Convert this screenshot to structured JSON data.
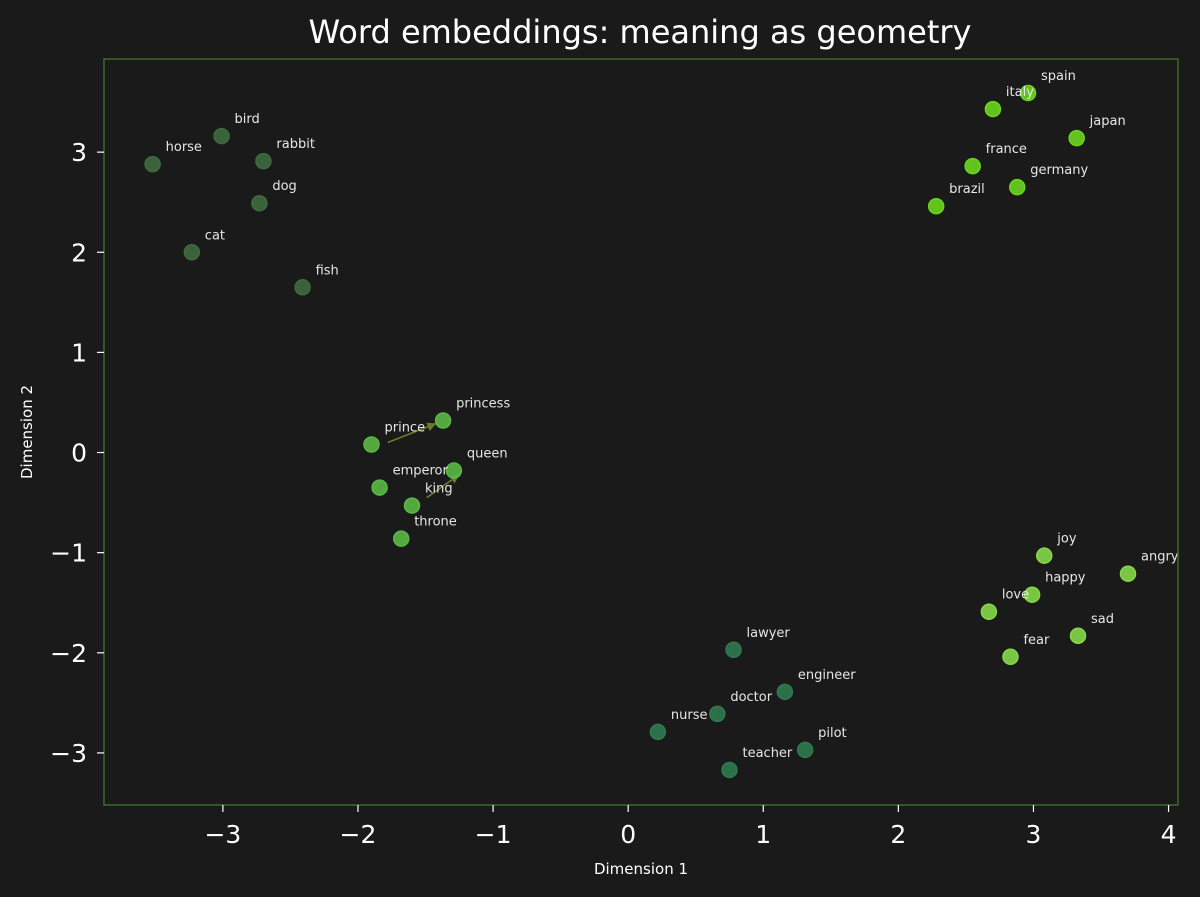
{
  "chart_data": {
    "type": "scatter",
    "title": "Word embeddings: meaning as geometry",
    "xlabel": "Dimension 1",
    "ylabel": "Dimension 2",
    "xlim": [
      -3.88,
      4.07
    ],
    "ylim": [
      -3.52,
      3.93
    ],
    "xticks": [
      -3,
      -2,
      -1,
      0,
      1,
      2,
      3,
      4
    ],
    "yticks": [
      -3,
      -2,
      -1,
      0,
      1,
      2,
      3
    ],
    "xtick_labels": [
      "−3",
      "−2",
      "−1",
      "0",
      "1",
      "2",
      "3",
      "4"
    ],
    "ytick_labels": [
      "−3",
      "−2",
      "−1",
      "0",
      "1",
      "2",
      "3"
    ],
    "grid": false,
    "colors": {
      "background": "#1a1a1a",
      "frame": "#3d6b2a",
      "arrow": "#6b7a2a"
    },
    "series": [
      {
        "color": "#3f6a3f",
        "points": [
          {
            "label": "horse",
            "x": -3.52,
            "y": 2.88
          },
          {
            "label": "bird",
            "x": -3.01,
            "y": 3.16
          },
          {
            "label": "rabbit",
            "x": -2.7,
            "y": 2.91
          },
          {
            "label": "dog",
            "x": -2.73,
            "y": 2.49
          },
          {
            "label": "cat",
            "x": -3.23,
            "y": 2.0
          },
          {
            "label": "fish",
            "x": -2.41,
            "y": 1.65
          }
        ]
      },
      {
        "color": "#5ab845",
        "points": [
          {
            "label": "prince",
            "x": -1.9,
            "y": 0.08
          },
          {
            "label": "princess",
            "x": -1.37,
            "y": 0.32
          },
          {
            "label": "queen",
            "x": -1.29,
            "y": -0.18
          },
          {
            "label": "emperor",
            "x": -1.84,
            "y": -0.35
          },
          {
            "label": "king",
            "x": -1.6,
            "y": -0.53
          },
          {
            "label": "throne",
            "x": -1.68,
            "y": -0.86
          }
        ]
      },
      {
        "color": "#6cd61f",
        "points": [
          {
            "label": "spain",
            "x": 2.96,
            "y": 3.59
          },
          {
            "label": "italy",
            "x": 2.7,
            "y": 3.43
          },
          {
            "label": "japan",
            "x": 3.32,
            "y": 3.14
          },
          {
            "label": "france",
            "x": 2.55,
            "y": 2.86
          },
          {
            "label": "germany",
            "x": 2.88,
            "y": 2.65
          },
          {
            "label": "brazil",
            "x": 2.28,
            "y": 2.46
          }
        ]
      },
      {
        "color": "#86d84a",
        "points": [
          {
            "label": "joy",
            "x": 3.08,
            "y": -1.03
          },
          {
            "label": "angry",
            "x": 3.7,
            "y": -1.21
          },
          {
            "label": "happy",
            "x": 2.99,
            "y": -1.42
          },
          {
            "label": "love",
            "x": 2.67,
            "y": -1.59
          },
          {
            "label": "sad",
            "x": 3.33,
            "y": -1.83
          },
          {
            "label": "fear",
            "x": 2.83,
            "y": -2.04
          }
        ]
      },
      {
        "color": "#2f7a4f",
        "points": [
          {
            "label": "lawyer",
            "x": 0.78,
            "y": -1.97
          },
          {
            "label": "engineer",
            "x": 1.16,
            "y": -2.39
          },
          {
            "label": "doctor",
            "x": 0.66,
            "y": -2.61
          },
          {
            "label": "nurse",
            "x": 0.22,
            "y": -2.79
          },
          {
            "label": "pilot",
            "x": 1.31,
            "y": -2.97
          },
          {
            "label": "teacher",
            "x": 0.75,
            "y": -3.17
          }
        ]
      }
    ],
    "arrows": [
      {
        "from": [
          -1.78,
          0.1
        ],
        "to": [
          -1.42,
          0.29
        ]
      },
      {
        "from": [
          -1.49,
          -0.45
        ],
        "to": [
          -1.25,
          -0.22
        ]
      }
    ]
  }
}
